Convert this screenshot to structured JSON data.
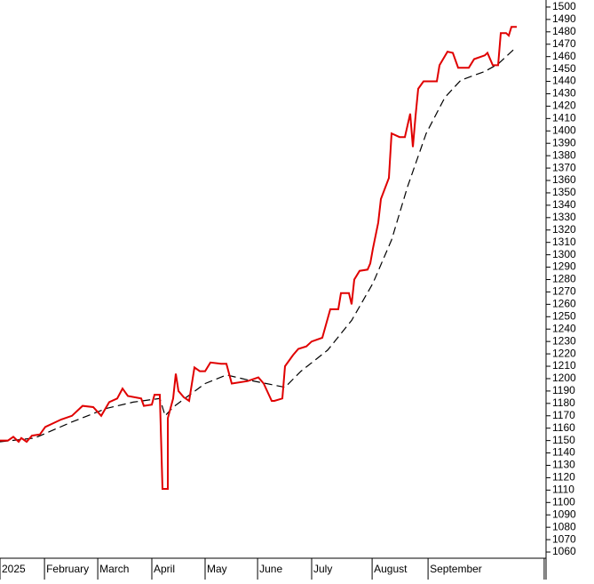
{
  "chart_data": {
    "type": "line",
    "xlim": [
      0,
      205
    ],
    "xticks": [
      {
        "value": 0,
        "label": "2025"
      },
      {
        "value": 16.7,
        "label": "February"
      },
      {
        "value": 36.7,
        "label": "March"
      },
      {
        "value": 57,
        "label": "April"
      },
      {
        "value": 77,
        "label": "May"
      },
      {
        "value": 96.7,
        "label": "June"
      },
      {
        "value": 117,
        "label": "July"
      },
      {
        "value": 139.7,
        "label": "August"
      },
      {
        "value": 160.7,
        "label": "September"
      },
      204.3
    ],
    "ylim": [
      1055,
      1505.7
    ],
    "yticks": [
      1060,
      1070,
      1080,
      1090,
      1100,
      1110,
      1120,
      1130,
      1140,
      1150,
      1160,
      1170,
      1180,
      1190,
      1200,
      1210,
      1220,
      1230,
      1240,
      1250,
      1260,
      1270,
      1280,
      1290,
      1300,
      1310,
      1320,
      1330,
      1340,
      1350,
      1360,
      1370,
      1380,
      1390,
      1400,
      1410,
      1420,
      1430,
      1440,
      1450,
      1460,
      1470,
      1480,
      1490,
      1500
    ],
    "grid": false,
    "series": [
      {
        "color": "#e00000",
        "dashed": false,
        "x": [
          0,
          3,
          5,
          7,
          8,
          10,
          12,
          15,
          17,
          20,
          23,
          27,
          31,
          35,
          38,
          41,
          44,
          46,
          48,
          53,
          54,
          57,
          58,
          60,
          61,
          63,
          63,
          65,
          66,
          67,
          69,
          71,
          73,
          75,
          77,
          79,
          83,
          85,
          87,
          93,
          97,
          99,
          102,
          103,
          106,
          107,
          110,
          112,
          115,
          117,
          121,
          124,
          127,
          128,
          131,
          132,
          133,
          135,
          138,
          139,
          140,
          142,
          143,
          146,
          147,
          150,
          152,
          154,
          155,
          156,
          157,
          159,
          164,
          165,
          168,
          170,
          172,
          176,
          178,
          182,
          183,
          185,
          187,
          188,
          190,
          191,
          192,
          194
        ],
        "values": [
          1150,
          1150,
          1153,
          1149,
          1152,
          1149,
          1154,
          1155,
          1161,
          1164,
          1167,
          1170,
          1178,
          1177,
          1170,
          1181,
          1184,
          1192,
          1186,
          1184,
          1178,
          1179,
          1187,
          1187,
          1111,
          1111,
          1168,
          1184,
          1204,
          1190,
          1185,
          1182,
          1209,
          1206,
          1206,
          1213,
          1212,
          1212,
          1196,
          1198,
          1201,
          1196,
          1182,
          1182,
          1184,
          1210,
          1219,
          1224,
          1226,
          1230,
          1233,
          1256,
          1256,
          1269,
          1269,
          1260,
          1280,
          1287,
          1288,
          1293,
          1305,
          1326,
          1345,
          1362,
          1398,
          1395,
          1395,
          1414,
          1387,
          1412,
          1434,
          1440,
          1440,
          1453,
          1464,
          1463,
          1451,
          1451,
          1458,
          1461,
          1463,
          1453,
          1453,
          1479,
          1479,
          1477,
          1484,
          1484
        ]
      },
      {
        "color": "#000000",
        "dashed": true,
        "x": [
          0,
          13,
          27,
          40,
          50,
          60,
          62,
          65,
          70,
          77,
          85,
          93,
          100,
          107,
          113,
          123,
          132,
          140,
          147,
          153,
          160,
          167,
          173,
          182,
          187,
          193
        ],
        "values": [
          1149,
          1152,
          1165,
          1176,
          1181,
          1184,
          1170,
          1177,
          1185,
          1196,
          1203,
          1199,
          1196,
          1193,
          1206,
          1223,
          1247,
          1277,
          1312,
          1355,
          1398,
          1427,
          1441,
          1448,
          1454,
          1466
        ]
      }
    ]
  }
}
